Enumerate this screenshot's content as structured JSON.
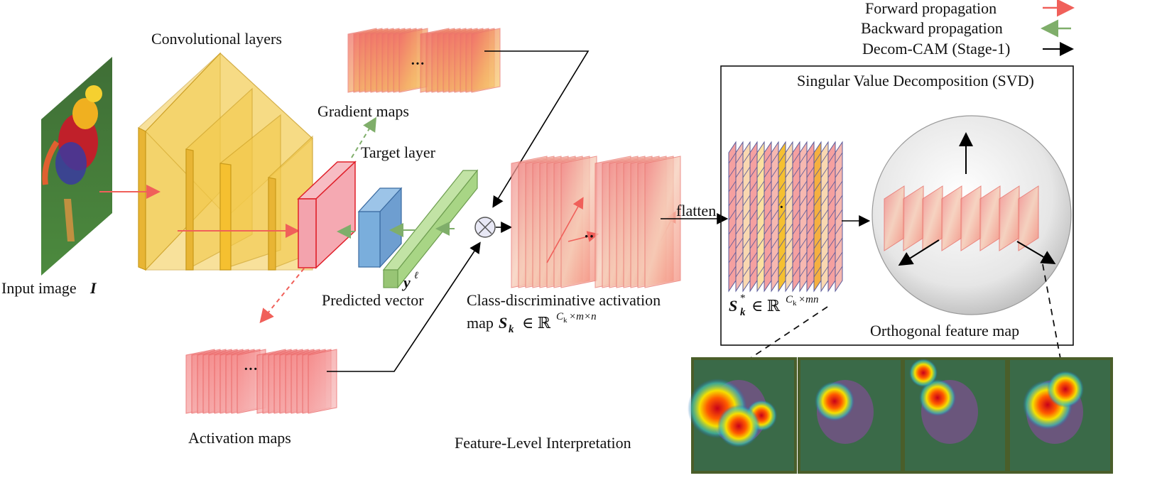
{
  "legend": {
    "forward": "Forward propagation",
    "backward": "Backward propagation",
    "decom": "Decom-CAM (Stage-1)",
    "forward_color": "#f0605a",
    "backward_color": "#7fae6a",
    "decom_color": "#000000"
  },
  "labels": {
    "conv_layers": "Convolutional layers",
    "gradient_maps": "Gradient maps",
    "target_layer": "Target layer",
    "input_image": "Input image",
    "input_symbol": "I",
    "predicted_vector": "Predicted vector",
    "y_symbol": "y",
    "y_superscript": "ℓ",
    "activation_maps": "Activation maps",
    "cdam_line1": "Class-discriminative activation",
    "cdam_line2_prefix": "map",
    "cdam_S": "S",
    "cdam_sub": "k",
    "cdam_in": "∈ ℝ",
    "cdam_sup": "C",
    "cdam_sup_sub": "k",
    "cdam_sup_rest": "×m×n",
    "flatten": "flatten",
    "svd_title": "Singular Value Decomposition (SVD)",
    "sk_star_S": "S",
    "sk_star_sub": "k",
    "sk_star_sup": "*",
    "sk_star_in": "∈ ℝ",
    "sk_star_dim": "C",
    "sk_star_dim_sub": "k",
    "sk_star_dim_rest": "×mn",
    "orthogonal": "Orthogonal feature map",
    "feature_level": "Feature-Level Interpretation"
  },
  "colors": {
    "conv_fill": "#f3c94a",
    "target_fill": "#f3a3ad",
    "target_stroke": "#e0202a",
    "pred_fill": "#7aaedc",
    "vector_fill": "#a8d585",
    "map_red": "#f07a7a",
    "map_orange": "#f5a04a"
  }
}
